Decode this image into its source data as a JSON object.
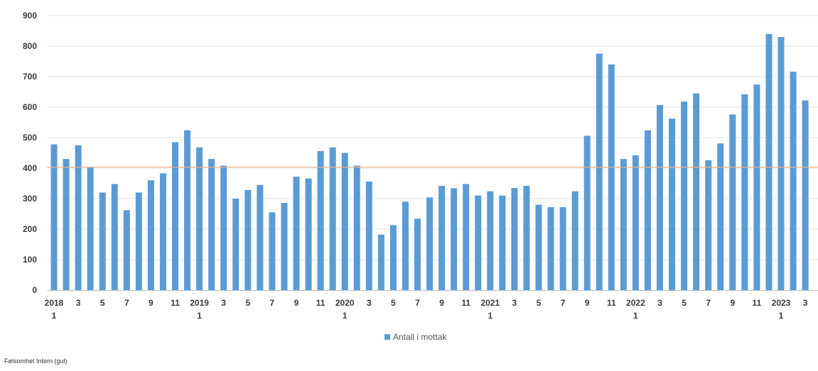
{
  "chart_data": {
    "type": "bar",
    "categories": [
      "2018-1",
      "2018-2",
      "2018-3",
      "2018-4",
      "2018-5",
      "2018-6",
      "2018-7",
      "2018-8",
      "2018-9",
      "2018-10",
      "2018-11",
      "2018-12",
      "2019-1",
      "2019-2",
      "2019-3",
      "2019-4",
      "2019-5",
      "2019-6",
      "2019-7",
      "2019-8",
      "2019-9",
      "2019-10",
      "2019-11",
      "2019-12",
      "2020-1",
      "2020-2",
      "2020-3",
      "2020-4",
      "2020-5",
      "2020-6",
      "2020-7",
      "2020-8",
      "2020-9",
      "2020-10",
      "2020-11",
      "2020-12",
      "2021-1",
      "2021-2",
      "2021-3",
      "2021-4",
      "2021-5",
      "2021-6",
      "2021-7",
      "2021-8",
      "2021-9",
      "2021-10",
      "2021-11",
      "2021-12",
      "2022-1",
      "2022-2",
      "2022-3",
      "2022-4",
      "2022-5",
      "2022-6",
      "2022-7",
      "2022-8",
      "2022-9",
      "2022-10",
      "2022-11",
      "2022-12",
      "2023-1",
      "2023-2",
      "2023-3"
    ],
    "series": [
      {
        "name": "Antall i mottak",
        "color": "#5b9bd5",
        "values": [
          478,
          430,
          475,
          402,
          320,
          348,
          262,
          320,
          360,
          383,
          485,
          524,
          468,
          430,
          408,
          300,
          328,
          345,
          255,
          286,
          372,
          366,
          456,
          468,
          450,
          408,
          356,
          182,
          213,
          290,
          234,
          304,
          342,
          334,
          348,
          310,
          324,
          310,
          335,
          342,
          280,
          272,
          272,
          324,
          506,
          775,
          740,
          430,
          442,
          524,
          607,
          562,
          618,
          645,
          426,
          481,
          576,
          642,
          674,
          840,
          830,
          716,
          622
        ]
      }
    ],
    "reference_line": {
      "value": 403,
      "color": "#f4b183"
    },
    "y_ticks": [
      "0",
      "100",
      "200",
      "300",
      "400",
      "500",
      "600",
      "700",
      "800",
      "900"
    ],
    "x_tick_labels": [
      {
        "index": 0,
        "line1": "2018",
        "line2": "1"
      },
      {
        "index": 2,
        "line1": "3",
        "line2": ""
      },
      {
        "index": 4,
        "line1": "5",
        "line2": ""
      },
      {
        "index": 6,
        "line1": "7",
        "line2": ""
      },
      {
        "index": 8,
        "line1": "9",
        "line2": ""
      },
      {
        "index": 10,
        "line1": "11",
        "line2": ""
      },
      {
        "index": 12,
        "line1": "2019",
        "line2": "1"
      },
      {
        "index": 14,
        "line1": "3",
        "line2": ""
      },
      {
        "index": 16,
        "line1": "5",
        "line2": ""
      },
      {
        "index": 18,
        "line1": "7",
        "line2": ""
      },
      {
        "index": 20,
        "line1": "9",
        "line2": ""
      },
      {
        "index": 22,
        "line1": "11",
        "line2": ""
      },
      {
        "index": 24,
        "line1": "2020",
        "line2": "1"
      },
      {
        "index": 26,
        "line1": "3",
        "line2": ""
      },
      {
        "index": 28,
        "line1": "5",
        "line2": ""
      },
      {
        "index": 30,
        "line1": "7",
        "line2": ""
      },
      {
        "index": 32,
        "line1": "9",
        "line2": ""
      },
      {
        "index": 34,
        "line1": "11",
        "line2": ""
      },
      {
        "index": 36,
        "line1": "2021",
        "line2": "1"
      },
      {
        "index": 38,
        "line1": "3",
        "line2": ""
      },
      {
        "index": 40,
        "line1": "5",
        "line2": ""
      },
      {
        "index": 42,
        "line1": "7",
        "line2": ""
      },
      {
        "index": 44,
        "line1": "9",
        "line2": ""
      },
      {
        "index": 46,
        "line1": "11",
        "line2": ""
      },
      {
        "index": 48,
        "line1": "2022",
        "line2": "1"
      },
      {
        "index": 50,
        "line1": "3",
        "line2": ""
      },
      {
        "index": 52,
        "line1": "5",
        "line2": ""
      },
      {
        "index": 54,
        "line1": "7",
        "line2": ""
      },
      {
        "index": 56,
        "line1": "9",
        "line2": ""
      },
      {
        "index": 58,
        "line1": "11",
        "line2": ""
      },
      {
        "index": 60,
        "line1": "2023",
        "line2": "1"
      },
      {
        "index": 62,
        "line1": "3",
        "line2": ""
      }
    ],
    "ylim": [
      0,
      900
    ],
    "grid": true,
    "legend_position": "bottom-center",
    "title": "",
    "xlabel": "",
    "ylabel": ""
  },
  "legend": {
    "label": "Antall i mottak"
  },
  "footer": {
    "text": "Følsomhet Intern (gul)"
  }
}
